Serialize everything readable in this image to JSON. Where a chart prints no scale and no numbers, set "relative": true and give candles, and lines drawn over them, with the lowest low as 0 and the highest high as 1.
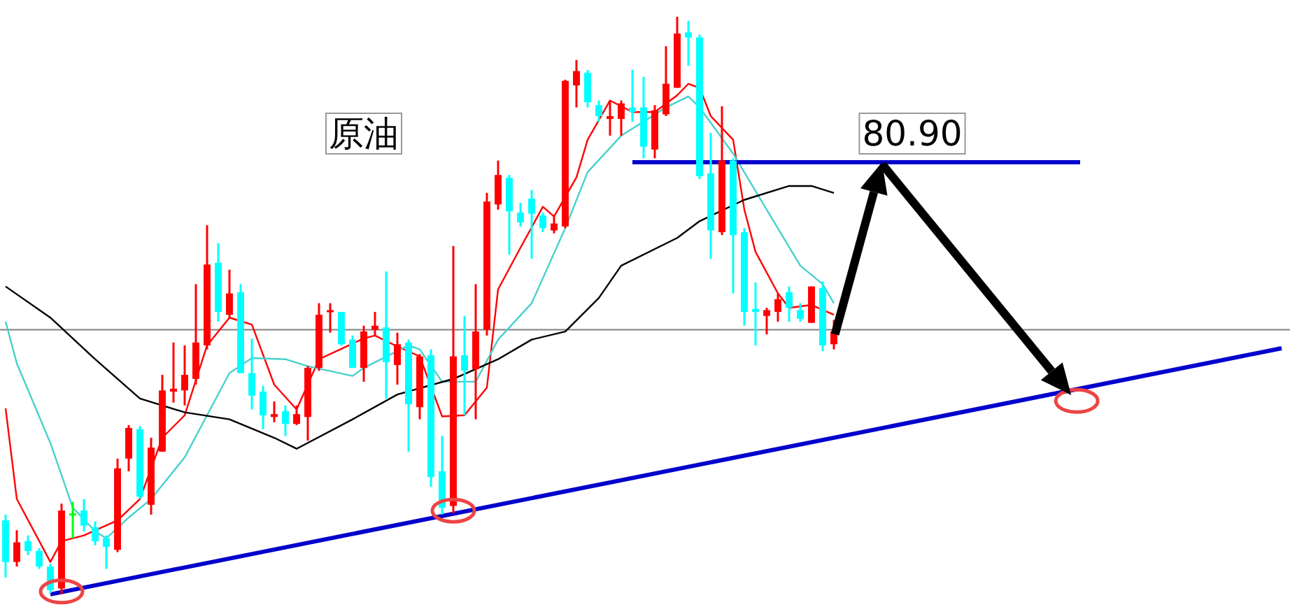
{
  "chart_data": {
    "type": "candlestick",
    "relative": true,
    "categories": [
      null,
      null,
      null,
      null,
      null,
      null,
      null,
      null,
      null,
      null,
      null,
      null,
      null,
      null,
      null,
      null,
      null,
      null,
      null,
      null,
      null,
      null,
      null,
      null,
      null,
      null,
      null,
      null,
      null,
      null,
      null,
      null,
      null,
      null,
      null,
      null,
      null,
      null,
      null,
      null,
      null,
      null,
      null,
      null,
      null,
      null,
      null,
      null,
      null,
      null,
      null,
      null,
      null,
      null,
      null,
      null,
      null,
      null,
      null,
      null,
      null,
      null,
      null,
      null,
      null,
      null,
      null,
      null,
      null,
      null,
      null,
      null,
      null,
      null,
      null,
      null,
      null,
      null,
      null,
      null,
      null,
      null,
      null,
      null,
      null,
      null,
      null,
      null,
      null,
      null,
      null,
      null,
      null,
      null,
      null,
      null,
      null,
      null,
      null,
      null,
      null,
      null,
      null,
      null,
      null,
      null,
      null,
      null,
      null,
      null,
      null,
      null,
      null,
      null,
      null
    ],
    "ohlc": [
      [
        0.128,
        0.138,
        0.029,
        0.056
      ],
      [
        0.056,
        0.111,
        0.048,
        0.09
      ],
      [
        0.092,
        0.102,
        0.068,
        0.075
      ],
      [
        0.075,
        0.08,
        0.044,
        0.048
      ],
      [
        0.048,
        0.053,
        0.002,
        0.007
      ],
      [
        0.01,
        0.157,
        0,
        0.145
      ],
      [
        0.14,
        0.16,
        0.097,
        0.14
      ],
      [
        0.145,
        0.165,
        0.109,
        0.119
      ],
      [
        0.116,
        0.126,
        0.085,
        0.092
      ],
      [
        0.097,
        0.102,
        0.044,
        0.082
      ],
      [
        0.077,
        0.235,
        0.073,
        0.218
      ],
      [
        0.235,
        0.293,
        0.213,
        0.288
      ],
      [
        0.286,
        0.291,
        0.165,
        0.169
      ],
      [
        0.155,
        0.271,
        0.138,
        0.254
      ],
      [
        0.247,
        0.38,
        0.247,
        0.353
      ],
      [
        0.351,
        0.436,
        0.332,
        0.356
      ],
      [
        0.353,
        0.431,
        0.327,
        0.38
      ],
      [
        0.373,
        0.537,
        0.363,
        0.436
      ],
      [
        0.431,
        0.639,
        0.424,
        0.571
      ],
      [
        0.574,
        0.608,
        0.472,
        0.489
      ],
      [
        0.484,
        0.562,
        0.477,
        0.521
      ],
      [
        0.523,
        0.537,
        0.383,
        0.383
      ],
      [
        0.383,
        0.443,
        0.32,
        0.344
      ],
      [
        0.351,
        0.361,
        0.286,
        0.31
      ],
      [
        0.307,
        0.334,
        0.298,
        0.312
      ],
      [
        0.317,
        0.327,
        0.274,
        0.295
      ],
      [
        0.295,
        0.327,
        0.293,
        0.312
      ],
      [
        0.307,
        0.395,
        0.266,
        0.392
      ],
      [
        0.392,
        0.504,
        0.387,
        0.484
      ],
      [
        0.489,
        0.504,
        0.453,
        0.492
      ],
      [
        0.489,
        0.489,
        0.431,
        0.433
      ],
      [
        0.441,
        0.448,
        0.392,
        0.392
      ],
      [
        0.392,
        0.465,
        0.368,
        0.455
      ],
      [
        0.458,
        0.489,
        0.448,
        0.465
      ],
      [
        0.462,
        0.559,
        0.339,
        0.402
      ],
      [
        0.397,
        0.453,
        0.363,
        0.433
      ],
      [
        0.436,
        0.441,
        0.247,
        0.329
      ],
      [
        0.324,
        0.416,
        0.303,
        0.412
      ],
      [
        0.414,
        0.424,
        0.186,
        0.203
      ],
      [
        0.213,
        0.274,
        0.138,
        0.15
      ],
      [
        0.153,
        0.603,
        0.14,
        0.412
      ],
      [
        0.414,
        0.482,
        0.31,
        0.387
      ],
      [
        0.39,
        0.537,
        0.303,
        0.455
      ],
      [
        0.458,
        0.695,
        0.448,
        0.68
      ],
      [
        0.675,
        0.751,
        0.666,
        0.726
      ],
      [
        0.721,
        0.726,
        0.588,
        0.663
      ],
      [
        0.661,
        0.678,
        0.637,
        0.644
      ],
      [
        0.685,
        0.7,
        0.581,
        0.659
      ],
      [
        0.656,
        0.661,
        0.627,
        0.634
      ],
      [
        0.63,
        0.654,
        0.625,
        0.642
      ],
      [
        0.637,
        0.891,
        0.634,
        0.889
      ],
      [
        0.881,
        0.925,
        0.843,
        0.906
      ],
      [
        0.903,
        0.908,
        0.843,
        0.852
      ],
      [
        0.847,
        0.855,
        0.818,
        0.828
      ],
      [
        0.823,
        0.855,
        0.794,
        0.828
      ],
      [
        0.823,
        0.855,
        0.794,
        0.85
      ],
      [
        0.843,
        0.908,
        0.818,
        0.835
      ],
      [
        0.843,
        0.896,
        0.755,
        0.775
      ],
      [
        0.77,
        0.847,
        0.755,
        0.838
      ],
      [
        0.831,
        0.949,
        0.828,
        0.884
      ],
      [
        0.877,
        1,
        0.877,
        0.971
      ],
      [
        0.973,
        0.993,
        0.915,
        0.964
      ],
      [
        0.964,
        0.969,
        0.719,
        0.724
      ],
      [
        0.729,
        0.799,
        0.581,
        0.63
      ],
      [
        0.627,
        0.845,
        0.622,
        0.751
      ],
      [
        0.751,
        0.755,
        0.521,
        0.622
      ],
      [
        0.627,
        0.634,
        0.465,
        0.489
      ],
      [
        0.494,
        0.54,
        0.431,
        0.489
      ],
      [
        0.482,
        0.496,
        0.45,
        0.492
      ],
      [
        0.489,
        0.521,
        0.472,
        0.511
      ],
      [
        0.523,
        0.533,
        0.472,
        0.496
      ],
      [
        0.492,
        0.504,
        0.472,
        0.477
      ],
      [
        0.47,
        0.533,
        0.47,
        0.533
      ],
      [
        0.53,
        0.542,
        0.421,
        0.431
      ],
      [
        0.433,
        0.475,
        0.424,
        0.455
      ],
      null,
      null,
      null,
      null,
      null,
      null,
      null,
      null,
      null,
      null,
      null,
      null,
      null,
      null,
      null,
      null,
      null,
      null,
      null,
      null,
      null,
      null,
      null,
      null,
      null,
      null,
      null,
      null,
      null,
      null,
      null,
      null,
      null,
      null,
      null,
      null,
      null,
      null,
      null,
      null
    ],
    "colors": [
      "#00ffff",
      "#ff0000",
      "#00ffff",
      "#00ffff",
      "#00ffff",
      "#ff0000",
      "#00ff00",
      "#00ffff",
      "#00ffff",
      "#00ffff",
      "#ff0000",
      "#ff0000",
      "#00ffff",
      "#ff0000",
      "#ff0000",
      "#ff0000",
      "#ff0000",
      "#ff0000",
      "#ff0000",
      "#00ffff",
      "#ff0000",
      "#00ffff",
      "#00ffff",
      "#00ffff",
      "#ff0000",
      "#00ffff",
      "#ff0000",
      "#ff0000",
      "#ff0000",
      "#ff0000",
      "#00ffff",
      "#00ffff",
      "#ff0000",
      "#ff0000",
      "#00ffff",
      "#ff0000",
      "#00ffff",
      "#ff0000",
      "#00ffff",
      "#00ffff",
      "#ff0000",
      "#00ffff",
      "#ff0000",
      "#ff0000",
      "#ff0000",
      "#00ffff",
      "#00ffff",
      "#00ffff",
      "#00ffff",
      "#ff0000",
      "#ff0000",
      "#ff0000",
      "#00ffff",
      "#00ffff",
      "#ff0000",
      "#ff0000",
      "#00ffff",
      "#00ffff",
      "#ff0000",
      "#ff0000",
      "#ff0000",
      "#00ffff",
      "#00ffff",
      "#00ffff",
      "#ff0000",
      "#00ffff",
      "#00ffff",
      "#00ffff",
      "#ff0000",
      "#ff0000",
      "#00ffff",
      "#00ffff",
      "#ff0000",
      "#00ffff",
      "#ff0000",
      null,
      null,
      null,
      null,
      null,
      null,
      null,
      null,
      null,
      null,
      null,
      null,
      null,
      null,
      null,
      null,
      null,
      null,
      null,
      null,
      null,
      null,
      null,
      null,
      null,
      null,
      null,
      null,
      null,
      null,
      null,
      null,
      null,
      null,
      null,
      null,
      null,
      null,
      null,
      null
    ],
    "series": [
      {
        "type": "line",
        "color": "#ff0000",
        "values": [
          0.322,
          0.165,
          null,
          null,
          0.056,
          0.092,
          null,
          0.102,
          null,
          null,
          0.128,
          null,
          0.165,
          null,
          0.271,
          null,
          0.31,
          null,
          0.431,
          null,
          0.479,
          null,
          0.467,
          null,
          0.363,
          null,
          0.32,
          null,
          0.407,
          null,
          null,
          null,
          0.443,
          0.448,
          null,
          0.429,
          null,
          0.412,
          null,
          0.308,
          null,
          0.31,
          null,
          0.358,
          0.528,
          null,
          0.6,
          null,
          0.671,
          0.654,
          null,
          0.722,
          0.787,
          null,
          0.855,
          null,
          0.835,
          null,
          0.835,
          null,
          0.864,
          0.884,
          0.877,
          0.828,
          null,
          0.787,
          0.666,
          0.593,
          null,
          0.521,
          0.496,
          null,
          0.501,
          null,
          0.484,
          null,
          null,
          null,
          null,
          null,
          null,
          null,
          null,
          null,
          null,
          null,
          null,
          null,
          null,
          null,
          null,
          null,
          null,
          null,
          null,
          null,
          null,
          null,
          null,
          null,
          null,
          null,
          null,
          null,
          null,
          null,
          null,
          null,
          null,
          null,
          null,
          null,
          null,
          null,
          null
        ]
      },
      {
        "type": "line",
        "color": "#48d1cc",
        "values": [
          0.472,
          0.4,
          null,
          null,
          0.262,
          null,
          0.15,
          null,
          0.109,
          0.097,
          null,
          0.133,
          null,
          0.165,
          null,
          null,
          0.237,
          null,
          0.31,
          null,
          0.383,
          null,
          0.409,
          null,
          null,
          0.407,
          null,
          0.395,
          null,
          null,
          null,
          0.378,
          0.392,
          null,
          null,
          null,
          0.431,
          0.424,
          null,
          0.368,
          null,
          null,
          0.368,
          null,
          0.441,
          null,
          null,
          0.504,
          null,
          null,
          0.634,
          null,
          0.731,
          null,
          null,
          0.794,
          null,
          null,
          null,
          0.843,
          null,
          0.862,
          0.843,
          null,
          null,
          0.763,
          null,
          null,
          0.666,
          null,
          null,
          0.569,
          null,
          0.537,
          0.504,
          null,
          null,
          null,
          null,
          null,
          null,
          null,
          null,
          null,
          null,
          null,
          null,
          null,
          null,
          null,
          null,
          null,
          null,
          null,
          null,
          null,
          null,
          null,
          null,
          null,
          null,
          null,
          null,
          null,
          null,
          null,
          null,
          null,
          null,
          null,
          null,
          null,
          null,
          null,
          null
        ]
      },
      {
        "type": "line",
        "color": "#000000",
        "values": [
          0.533,
          null,
          null,
          null,
          0.479,
          null,
          null,
          null,
          0.407,
          null,
          null,
          null,
          0.339,
          null,
          null,
          null,
          0.315,
          null,
          null,
          null,
          0.303,
          null,
          null,
          null,
          0.271,
          null,
          0.252,
          null,
          null,
          null,
          null,
          0.303,
          null,
          null,
          null,
          0.346,
          null,
          null,
          null,
          null,
          0.373,
          null,
          null,
          null,
          0.407,
          null,
          null,
          0.441,
          null,
          null,
          0.455,
          null,
          null,
          0.513,
          null,
          0.569,
          null,
          null,
          null,
          null,
          0.617,
          null,
          0.646,
          null,
          null,
          null,
          0.683,
          null,
          null,
          null,
          0.707,
          null,
          0.707,
          null,
          0.695,
          null,
          null,
          null,
          null,
          null,
          null,
          null,
          null,
          null,
          null,
          null,
          null,
          null,
          null,
          null,
          null,
          null,
          null,
          null,
          null,
          null,
          null,
          null,
          null,
          null,
          null,
          null,
          null,
          null,
          null,
          null,
          null,
          null,
          null,
          null,
          null,
          null,
          null,
          null,
          null
        ]
      },
      {
        "type": "line",
        "color": "#0000cc",
        "values": [
          null,
          null,
          null,
          null,
          null,
          null,
          null,
          null,
          null,
          null,
          null,
          null,
          null,
          null,
          null,
          null,
          null,
          null,
          null,
          null,
          null,
          null,
          null,
          null,
          null,
          null,
          null,
          null,
          null,
          null,
          null,
          null,
          null,
          null,
          null,
          null,
          null,
          null,
          null,
          null,
          null,
          null,
          null,
          null,
          null,
          null,
          null,
          null,
          null,
          null,
          null,
          null,
          null,
          null,
          null,
          null,
          0.748,
          null,
          null,
          null,
          null,
          null,
          null,
          null,
          null,
          null,
          null,
          null,
          null,
          null,
          null,
          null,
          null,
          null,
          null,
          null,
          null,
          null,
          null,
          null,
          null,
          null,
          null,
          null,
          null,
          null,
          null,
          null,
          null,
          null,
          null,
          null,
          null,
          null,
          null,
          null,
          0.748,
          null,
          null,
          null,
          null,
          null,
          null,
          null,
          null,
          null,
          null,
          null,
          null,
          null,
          null,
          null,
          null,
          null,
          null
        ]
      },
      {
        "type": "line",
        "color": "#0000cc",
        "values": [
          null,
          null,
          null,
          null,
          0,
          null,
          null,
          null,
          null,
          null,
          null,
          null,
          null,
          null,
          null,
          null,
          null,
          null,
          null,
          null,
          null,
          null,
          null,
          null,
          null,
          null,
          null,
          null,
          null,
          null,
          null,
          null,
          null,
          null,
          null,
          null,
          null,
          null,
          null,
          null,
          null,
          null,
          null,
          null,
          null,
          null,
          null,
          null,
          null,
          null,
          null,
          null,
          null,
          null,
          null,
          null,
          null,
          null,
          null,
          null,
          null,
          null,
          null,
          null,
          null,
          null,
          null,
          null,
          null,
          null,
          null,
          null,
          null,
          null,
          null,
          null,
          null,
          null,
          null,
          null,
          null,
          null,
          null,
          null,
          null,
          null,
          null,
          null,
          null,
          null,
          null,
          null,
          null,
          null,
          null,
          null,
          null,
          null,
          null,
          null,
          null,
          null,
          null,
          null,
          null,
          null,
          null,
          null,
          null,
          null,
          null,
          null,
          null,
          null,
          0.426
        ]
      }
    ],
    "ref_lines": [
      {
        "axis": "y",
        "value": 0.458,
        "color": "#808080"
      }
    ],
    "annotations": [
      "原油",
      "80.90"
    ]
  }
}
